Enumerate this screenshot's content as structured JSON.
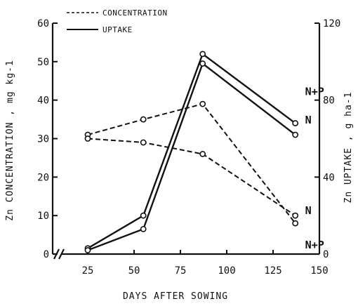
{
  "chart_data": {
    "type": "line",
    "xlabel": "DAYS AFTER SOWING",
    "ylabel_left": "Zn CONCENTRATION , mg kg-1",
    "ylabel_right": "Zn UPTAKE , g ha-1",
    "xlim": [
      20,
      150
    ],
    "ylim_left": [
      0,
      60
    ],
    "ylim_right": [
      0,
      120
    ],
    "x_ticks": [
      25,
      50,
      75,
      100,
      125,
      150
    ],
    "y_left_ticks": [
      0,
      10,
      20,
      30,
      40,
      50,
      60
    ],
    "y_right_ticks": [
      0,
      40,
      80,
      120
    ],
    "axis_break": "x",
    "grid": false,
    "legend": {
      "placement": "top-left",
      "entries": [
        {
          "label": "CONCENTRATION",
          "style": "dashed"
        },
        {
          "label": "UPTAKE",
          "style": "solid"
        }
      ]
    },
    "series": [
      {
        "label": "N+P",
        "kind": "concentration",
        "axis": "left",
        "style": "dashed",
        "x": [
          25,
          55,
          87,
          137
        ],
        "y": [
          31,
          35,
          39,
          8
        ]
      },
      {
        "label": "N",
        "kind": "concentration",
        "axis": "left",
        "style": "dashed",
        "x": [
          25,
          55,
          87,
          137
        ],
        "y": [
          30,
          29,
          26,
          10
        ]
      },
      {
        "label": "N+P",
        "kind": "uptake",
        "axis": "right",
        "style": "solid",
        "x": [
          25,
          55,
          87,
          137
        ],
        "y": [
          3,
          20,
          104,
          68
        ]
      },
      {
        "label": "N",
        "kind": "uptake",
        "axis": "right",
        "style": "solid",
        "x": [
          25,
          55,
          87,
          137
        ],
        "y": [
          2,
          13,
          99,
          62
        ]
      }
    ]
  }
}
